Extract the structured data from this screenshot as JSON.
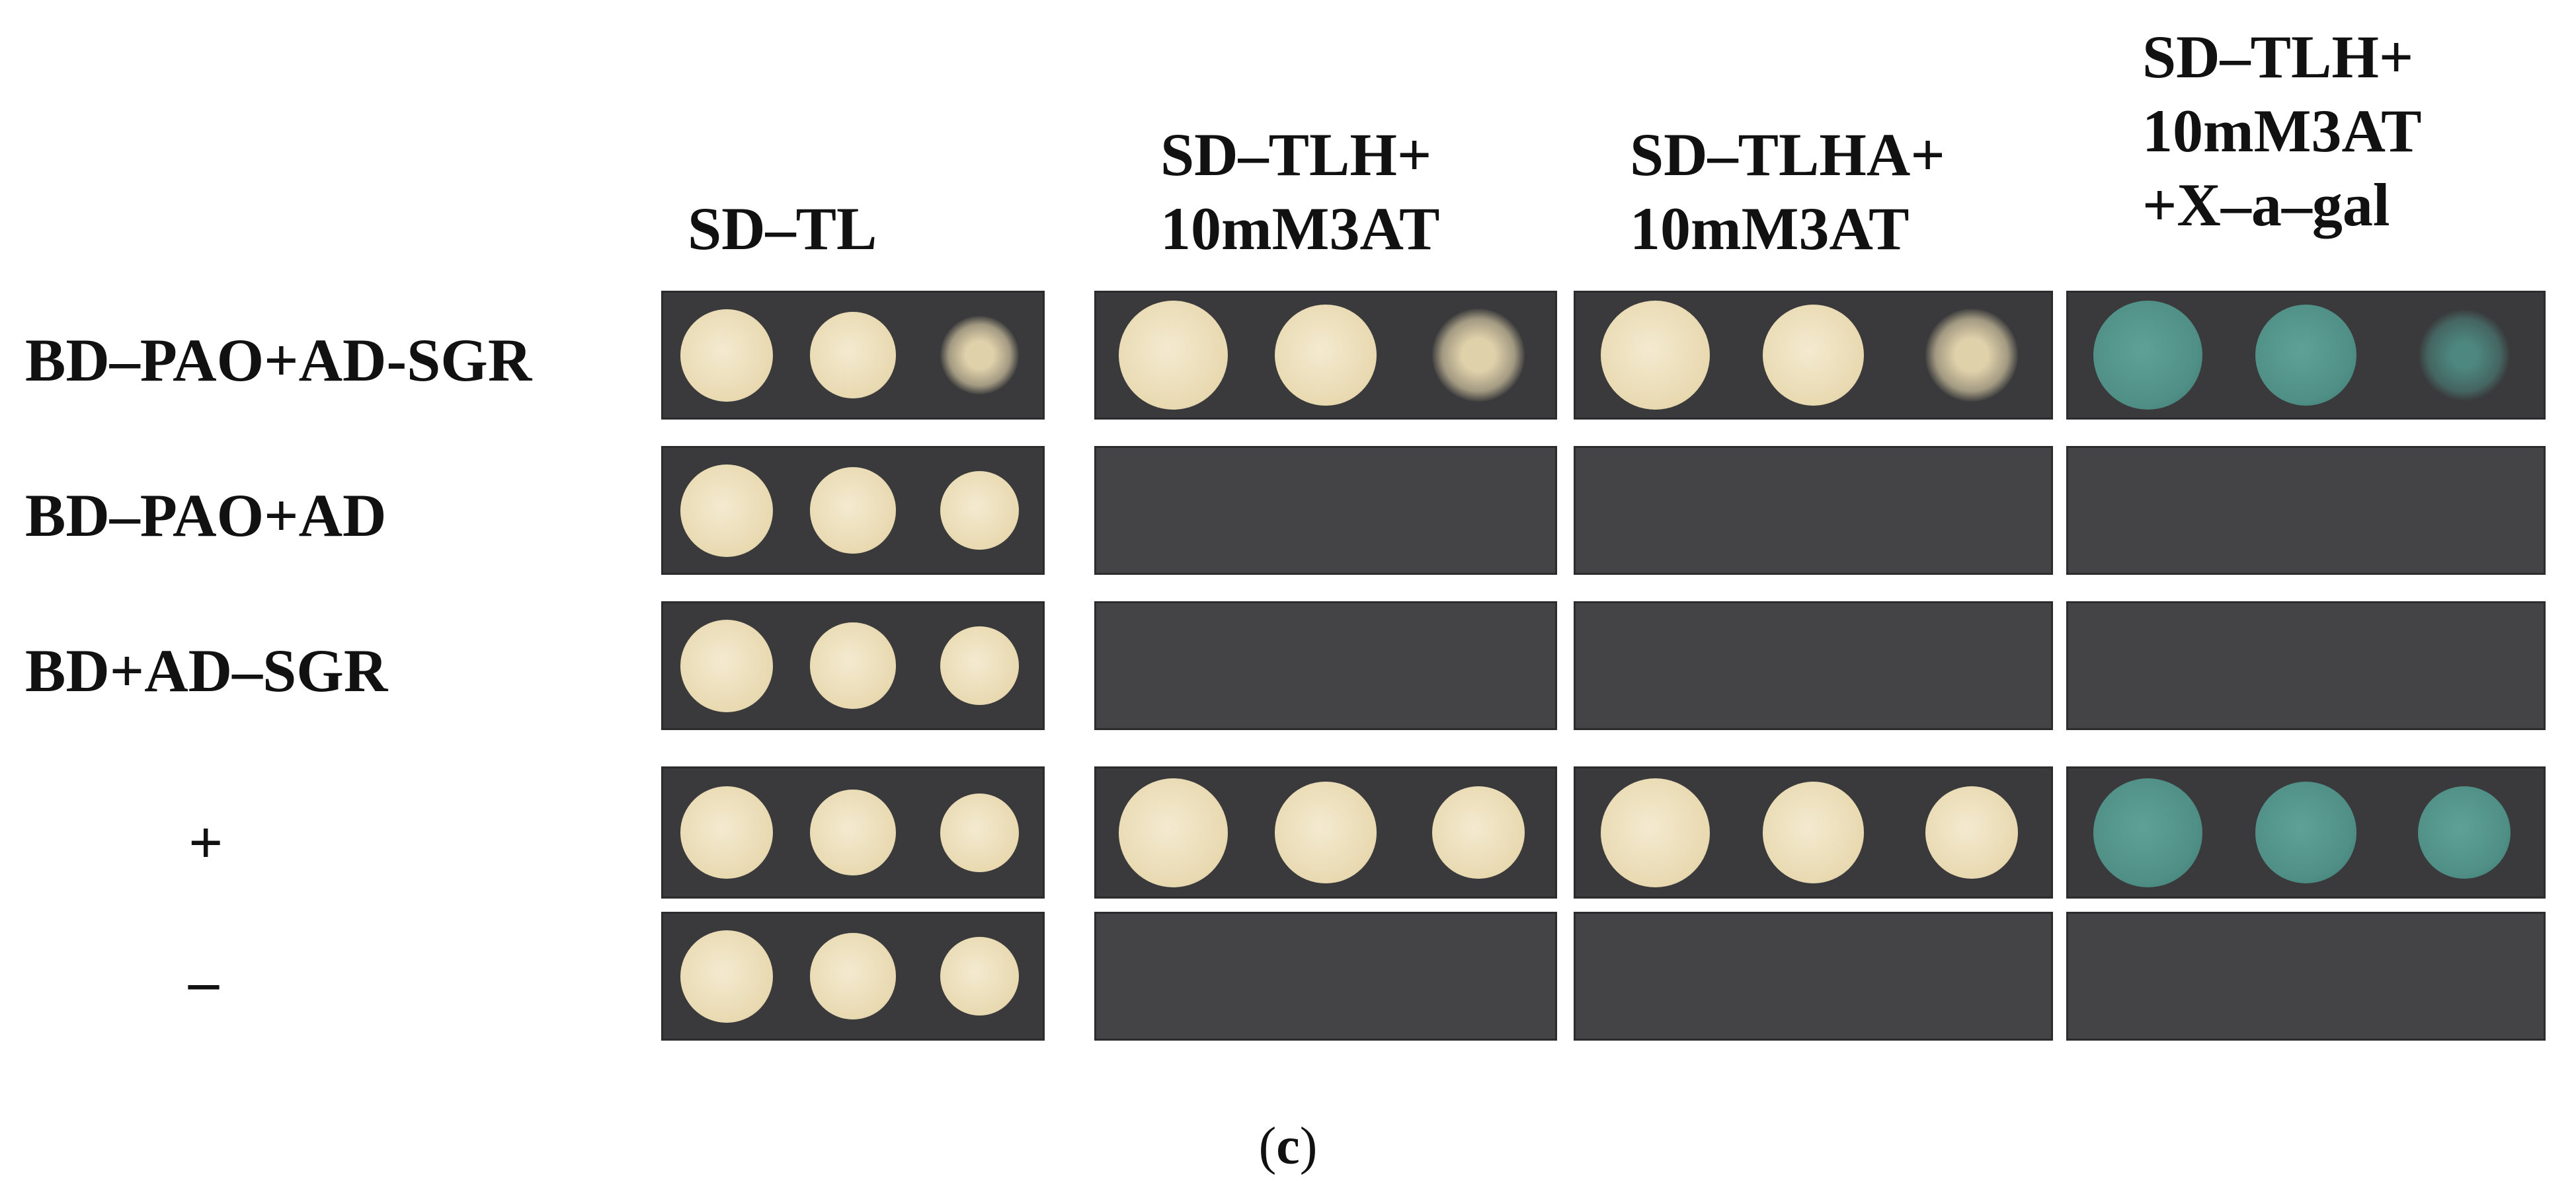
{
  "columns": [
    {
      "id": "sd-tl",
      "lines": [
        "SD–TL"
      ]
    },
    {
      "id": "sd-tlh-3at",
      "lines": [
        "SD–TLH+",
        "10mM3AT"
      ]
    },
    {
      "id": "sd-tlha-3at",
      "lines": [
        "SD–TLHA+",
        "10mM3AT"
      ]
    },
    {
      "id": "sd-tlh-3at-xagal",
      "lines": [
        "SD–TLH+",
        "10mM3AT",
        "+X–a–gal"
      ]
    }
  ],
  "rows": [
    {
      "label": "BD–PAO+AD-SGR"
    },
    {
      "label": "BD–PAO+AD"
    },
    {
      "label": "BD+AD–SGR"
    },
    {
      "label": "+"
    },
    {
      "label": "–"
    }
  ],
  "growth": [
    [
      true,
      true,
      true,
      true
    ],
    [
      true,
      false,
      false,
      false
    ],
    [
      true,
      false,
      false,
      false
    ],
    [
      true,
      true,
      true,
      true
    ],
    [
      true,
      false,
      false,
      false
    ]
  ],
  "colors": {
    "plate_background": "#3a3a3c",
    "colony_cream": "#e8d9b0",
    "colony_blue": "#4f8f86"
  },
  "panel_label_open": "(",
  "panel_label_letter": "c",
  "panel_label_close": ")"
}
